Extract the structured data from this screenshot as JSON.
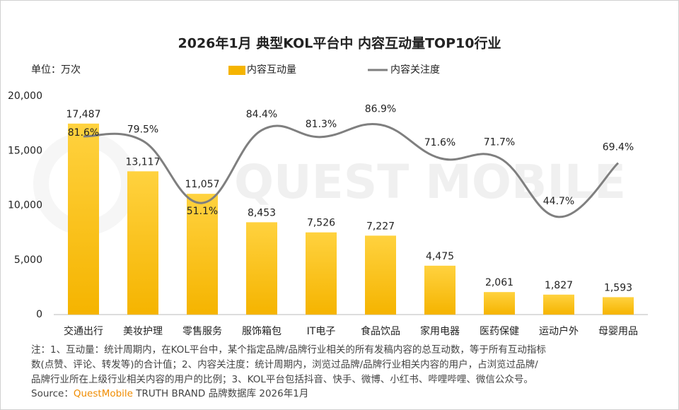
{
  "chart_data": {
    "type": "combo",
    "title": "2026年1月 典型KOL平台中 内容互动量TOP10行业",
    "unit_label": "单位：万次",
    "watermark": "QUEST MOBILE",
    "categories": [
      "交通出行",
      "美妆护理",
      "零售服务",
      "服饰箱包",
      "IT电子",
      "食品饮品",
      "家用电器",
      "医药保健",
      "运动户外",
      "母婴用品"
    ],
    "series": [
      {
        "name": "内容互动量",
        "type": "bar",
        "color": "#f5b400",
        "values": [
          17487,
          13117,
          11057,
          8453,
          7526,
          7227,
          4475,
          2061,
          1827,
          1593
        ],
        "value_labels": [
          "17,487",
          "13,117",
          "11,057",
          "8,453",
          "7,526",
          "7,227",
          "4,475",
          "2,061",
          "1,827",
          "1,593"
        ]
      },
      {
        "name": "内容关注度",
        "type": "line",
        "color": "#7f7f7f",
        "axis": "y2",
        "values": [
          81.6,
          79.5,
          51.1,
          84.4,
          81.3,
          86.9,
          71.6,
          71.7,
          44.7,
          69.4
        ],
        "value_labels": [
          "81.6%",
          "79.5%",
          "51.1%",
          "84.4%",
          "81.3%",
          "86.9%",
          "71.6%",
          "71.7%",
          "44.7%",
          "69.4%"
        ]
      }
    ],
    "ylim": [
      0,
      20000
    ],
    "yticks": [
      0,
      {
        "value": 5000,
        "label": "5,000"
      },
      {
        "value": 10000,
        "label": "10,000"
      },
      {
        "value": 15000,
        "label": "15,000"
      },
      {
        "value": 20000,
        "label": "20,000"
      }
    ],
    "y2lim": [
      0,
      100
    ],
    "grid": false,
    "legend": "top",
    "notes": [
      "注：1、互动量：统计周期内，在KOL平台中，某个指定品牌/品牌行业相关的所有发稿内容的总互动数，等于所有互动指标",
      "数(点赞、评论、转发等)的合计值；2、内容关注度：统计周期内，浏览过品牌/品牌行业相关内容的用户，占浏览过品牌/",
      "品牌行业所在上级行业相关内容的用户的比例；3、KOL平台包括抖音、快手、微博、小红书、哔哩哔哩、微信公众号。"
    ],
    "source_prefix": "Source：",
    "source_brand": "QuestMobile",
    "source_rest": " TRUTH BRAND 品牌数据库 2026年1月"
  }
}
